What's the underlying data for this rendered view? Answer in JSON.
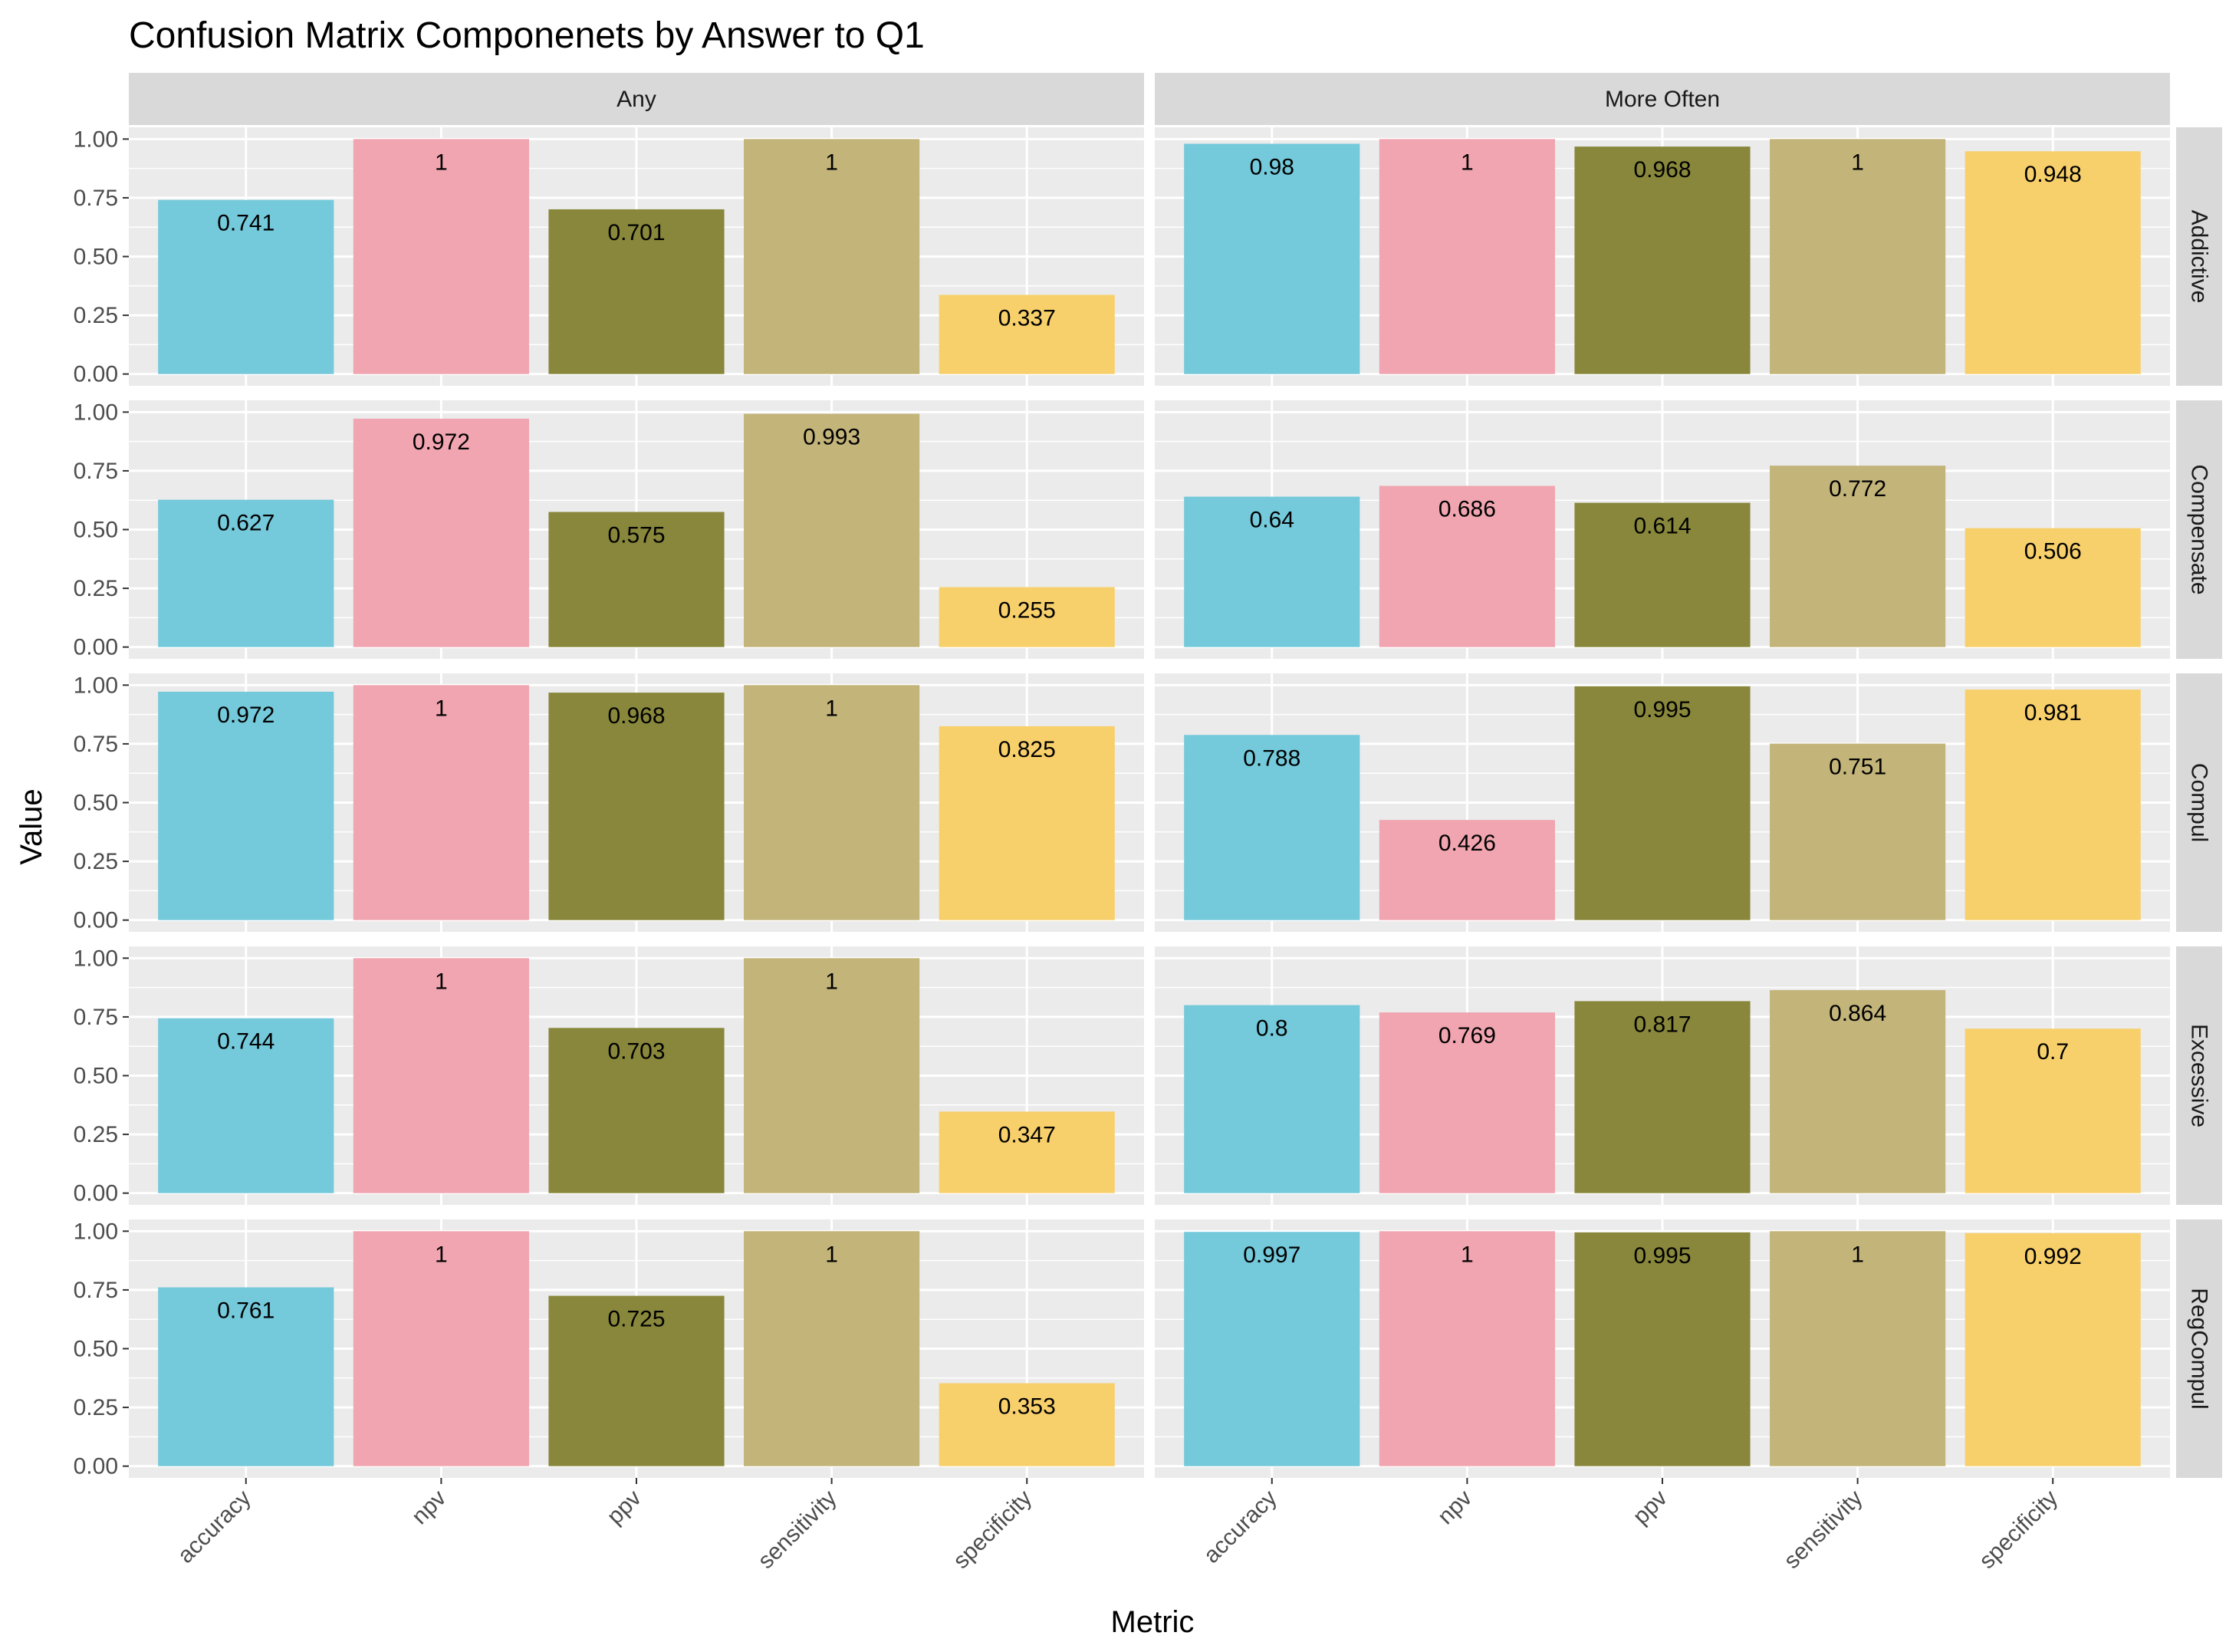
{
  "chart_data": {
    "type": "bar",
    "title": "Confusion Matrix Componenets by Answer to Q1",
    "xlabel": "Metric",
    "ylabel": "Value",
    "ylim": [
      0,
      1
    ],
    "y_ticks": [
      "0.00",
      "0.25",
      "0.50",
      "0.75",
      "1.00"
    ],
    "grid": true,
    "legend": "none",
    "categories": [
      "accuracy",
      "npv",
      "ppv",
      "sensitivity",
      "specificity"
    ],
    "colors": {
      "accuracy": "#74c9db",
      "npv": "#f0a5b0",
      "ppv": "#88873b",
      "sensitivity": "#c3b47a",
      "specificity": "#f8d06b"
    },
    "columns": [
      "Any",
      "More Often"
    ],
    "rows": [
      "Addictive",
      "Compensate",
      "Compul",
      "Excessive",
      "RegCompul"
    ],
    "panels": [
      {
        "row": "Addictive",
        "column": "Any",
        "values": [
          0.741,
          1,
          0.701,
          1,
          0.337
        ],
        "labels": [
          "0.741",
          "1",
          "0.701",
          "1",
          "0.337"
        ]
      },
      {
        "row": "Addictive",
        "column": "More Often",
        "values": [
          0.98,
          1,
          0.968,
          1,
          0.948
        ],
        "labels": [
          "0.98",
          "1",
          "0.968",
          "1",
          "0.948"
        ]
      },
      {
        "row": "Compensate",
        "column": "Any",
        "values": [
          0.627,
          0.972,
          0.575,
          0.993,
          0.255
        ],
        "labels": [
          "0.627",
          "0.972",
          "0.575",
          "0.993",
          "0.255"
        ]
      },
      {
        "row": "Compensate",
        "column": "More Often",
        "values": [
          0.64,
          0.686,
          0.614,
          0.772,
          0.506
        ],
        "labels": [
          "0.64",
          "0.686",
          "0.614",
          "0.772",
          "0.506"
        ]
      },
      {
        "row": "Compul",
        "column": "Any",
        "values": [
          0.972,
          1,
          0.968,
          1,
          0.825
        ],
        "labels": [
          "0.972",
          "1",
          "0.968",
          "1",
          "0.825"
        ]
      },
      {
        "row": "Compul",
        "column": "More Often",
        "values": [
          0.788,
          0.426,
          0.995,
          0.751,
          0.981
        ],
        "labels": [
          "0.788",
          "0.426",
          "0.995",
          "0.751",
          "0.981"
        ]
      },
      {
        "row": "Excessive",
        "column": "Any",
        "values": [
          0.744,
          1,
          0.703,
          1,
          0.347
        ],
        "labels": [
          "0.744",
          "1",
          "0.703",
          "1",
          "0.347"
        ]
      },
      {
        "row": "Excessive",
        "column": "More Often",
        "values": [
          0.8,
          0.769,
          0.817,
          0.864,
          0.7
        ],
        "labels": [
          "0.8",
          "0.769",
          "0.817",
          "0.864",
          "0.7"
        ]
      },
      {
        "row": "RegCompul",
        "column": "Any",
        "values": [
          0.761,
          1,
          0.725,
          1,
          0.353
        ],
        "labels": [
          "0.761",
          "1",
          "0.725",
          "1",
          "0.353"
        ]
      },
      {
        "row": "RegCompul",
        "column": "More Often",
        "values": [
          0.997,
          1,
          0.995,
          1,
          0.992
        ],
        "labels": [
          "0.997",
          "1",
          "0.995",
          "1",
          "0.992"
        ]
      }
    ]
  }
}
